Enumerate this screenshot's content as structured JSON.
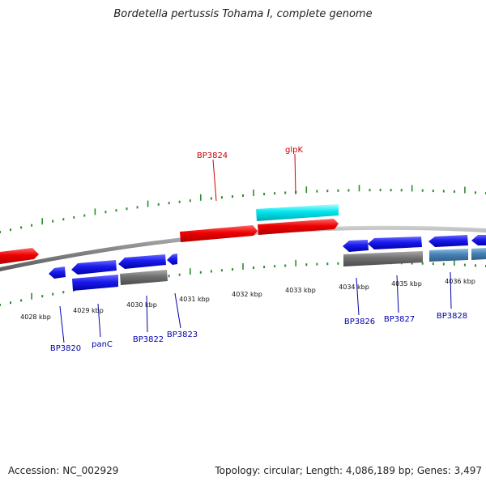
{
  "title": "Bordetella pertussis Tohama I, complete genome",
  "footer": {
    "accession": "Accession: NC_002929",
    "summary": "Topology: circular; Length: 4,086,189 bp; Genes: 3,497"
  },
  "colors": {
    "backbone": "#8a8a8a",
    "ticks": "#2e8b2e",
    "red_label": "#cc0000",
    "blue_label": "#0000aa",
    "gene_red": "#ee0000",
    "gene_cyan": "#00e5ee",
    "gene_blue": "#1a1aee",
    "gene_gray": "#707070",
    "gene_steel": "#4682b4"
  },
  "kbp_labels": [
    "4028 kbp",
    "4029 kbp",
    "4030 kbp",
    "4031 kbp",
    "4032 kbp",
    "4033 kbp",
    "4034 kbp",
    "4035 kbp",
    "4036 kbp"
  ],
  "gene_labels": {
    "bp3820": "BP3820",
    "panc": "panC",
    "bp3822": "BP3822",
    "bp3823": "BP3823",
    "bp3824": "BP3824",
    "glpk": "glpK",
    "bp3826": "BP3826",
    "bp3827": "BP3827",
    "bp3828": "BP3828"
  }
}
